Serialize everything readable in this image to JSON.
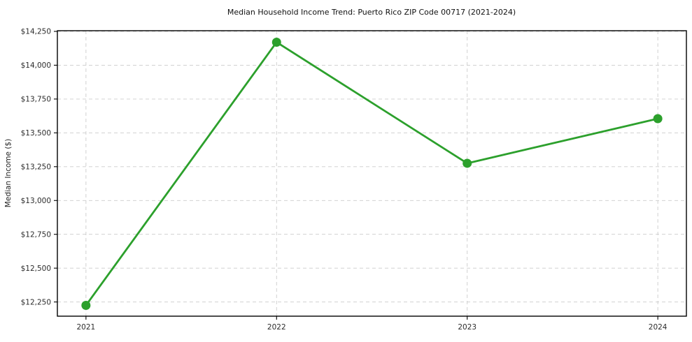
{
  "chart_data": {
    "type": "line",
    "title": "Median Household Income Trend: Puerto Rico ZIP Code 00717 (2021-2024)",
    "xlabel": "",
    "ylabel": "Median Income ($)",
    "x": [
      2021,
      2022,
      2023,
      2024
    ],
    "xtick_labels": [
      "2021",
      "2022",
      "2023",
      "2024"
    ],
    "values": [
      12225,
      14170,
      13275,
      13605
    ],
    "series_name": "Median Household Income",
    "ylim": [
      12145,
      14255
    ],
    "xlim": [
      2020.85,
      2024.15
    ],
    "ytick_values": [
      12250,
      12500,
      12750,
      13000,
      13250,
      13500,
      13750,
      14000,
      14250
    ],
    "ytick_labels": [
      "$12,250",
      "$12,500",
      "$12,750",
      "$13,000",
      "$13,250",
      "$13,500",
      "$13,750",
      "$14,000",
      "$14,250"
    ],
    "grid": true,
    "legend_position": "none",
    "marker": "circle",
    "line_color": "#2ca02c",
    "grid_color": "#cccccc",
    "background_color": "#ffffff"
  }
}
